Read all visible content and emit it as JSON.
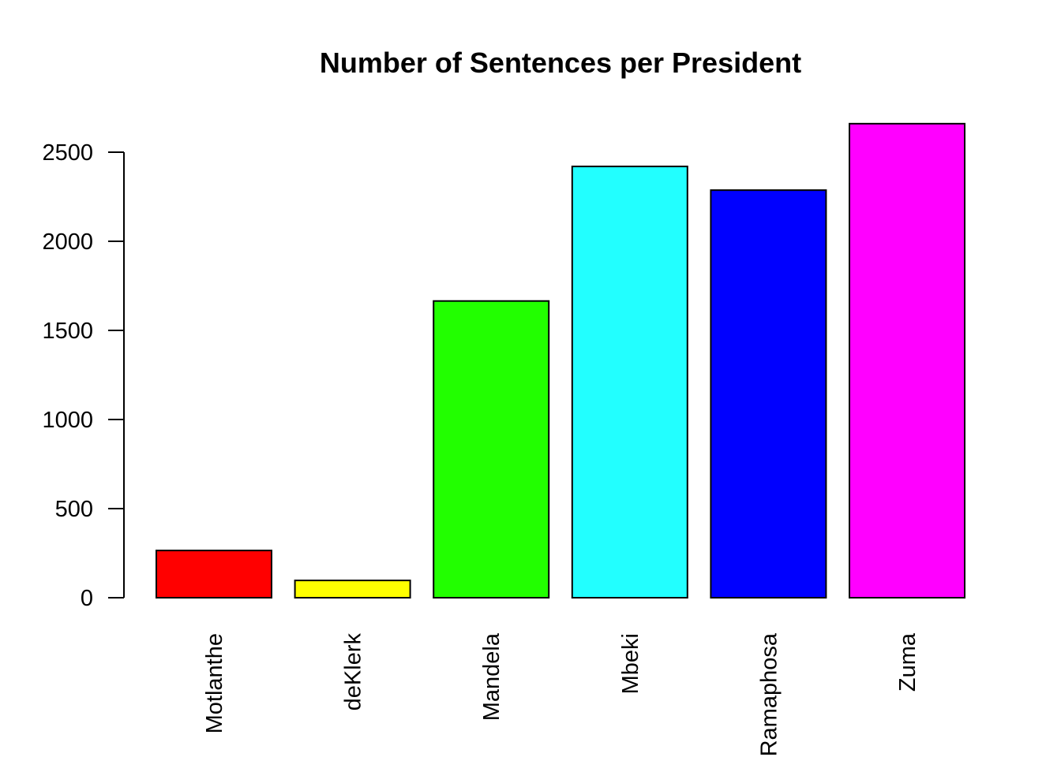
{
  "chart_data": {
    "type": "bar",
    "title": "Number of Sentences per President",
    "xlabel": "",
    "ylabel": "",
    "categories": [
      "Motlanthe",
      "deKlerk",
      "Mandela",
      "Mbeki",
      "Ramaphosa",
      "Zuma"
    ],
    "values": [
      265,
      97,
      1665,
      2420,
      2287,
      2660
    ],
    "colors": [
      "#FF0000",
      "#FFFF00",
      "#22FF00",
      "#22FFFF",
      "#0000FF",
      "#FF00FF"
    ],
    "yticks": [
      0,
      500,
      1000,
      1500,
      2000,
      2500
    ],
    "ylim": [
      0,
      2660
    ],
    "grid": false,
    "legend": "none"
  }
}
